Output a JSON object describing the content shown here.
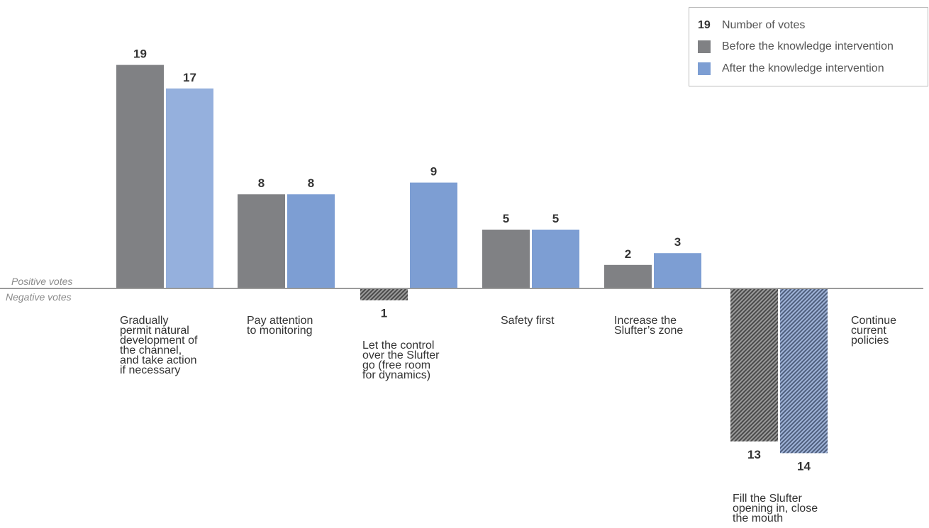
{
  "legend": {
    "number_sample": "19",
    "number_label": "Number of votes",
    "before_label": "Before the knowledge intervention",
    "after_label": "After the knowledge intervention"
  },
  "axis": {
    "positive_label": "Positive votes",
    "negative_label": "Negative votes"
  },
  "colors": {
    "before": "#808184",
    "after_first": "#95b0dd",
    "after": "#7d9ed3",
    "hatch_dark": "#4a4a4a",
    "hatch_light": "#9a9a9a",
    "hatch_blue_dark": "#4f5f7d",
    "hatch_blue_light": "#9fb3d8",
    "axis": "#9a9a9a",
    "value_text": "#333333"
  },
  "chart_data": {
    "type": "bar",
    "categories": [
      "Gradually\npermit natural\ndevelopment of\nthe channel,\nand take action\nif necessary",
      "Pay attention\nto monitoring",
      "Let the control\nover the Slufter\ngo (free room\nfor dynamics)",
      "Safety first",
      "Increase the\nSlufter’s zone",
      "Fill the Slufter\nopening in, close\nthe mouth",
      "Continue\ncurrent\npolicies"
    ],
    "series": [
      {
        "name": "Before the knowledge intervention",
        "values": [
          19,
          8,
          -1,
          5,
          2,
          -13,
          null
        ]
      },
      {
        "name": "After the knowledge intervention",
        "values": [
          17,
          8,
          9,
          5,
          3,
          -14,
          null
        ]
      }
    ],
    "value_labels": {
      "before": [
        "19",
        "8",
        "1",
        "5",
        "2",
        "13",
        ""
      ],
      "after": [
        "17",
        "8",
        "9",
        "5",
        "3",
        "14",
        ""
      ]
    },
    "ylim": [
      -14,
      19
    ],
    "grid": false,
    "legend_position": "top-right"
  }
}
